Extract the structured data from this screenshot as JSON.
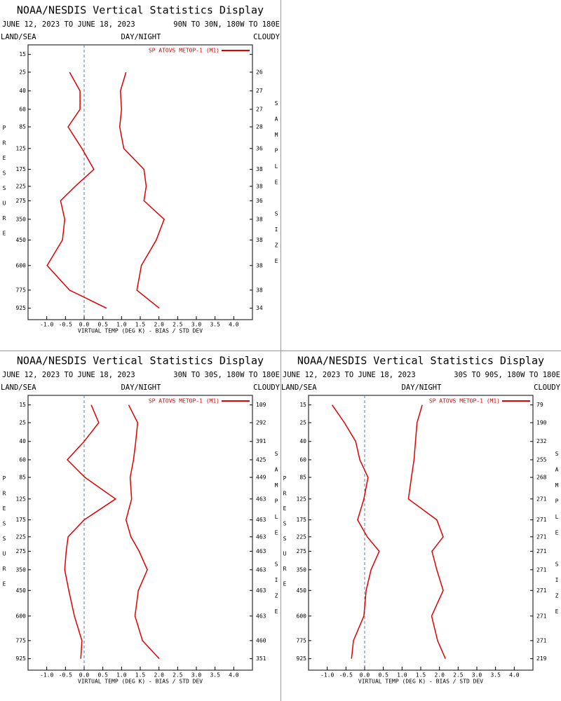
{
  "chart_data": [
    {
      "type": "line",
      "title": "NOAA/NESDIS Vertical Statistics Display",
      "subtitle": "JUNE 12, 2023 TO JUNE 18, 2023",
      "region": "90N TO 30N, 180W TO 180E",
      "land_sea": "LAND/SEA",
      "day_night": "DAY/NIGHT",
      "cloudy": "CLOUDY",
      "ylabel": "PRESSURE",
      "y2label": "SAMPLE SIZE",
      "xlabel": "VIRTUAL TEMP (DEG K) - BIAS / STD DEV",
      "yscale": "pressure",
      "ylim": [
        11,
        1030
      ],
      "xlim": [
        -1.5,
        4.5
      ],
      "y": [
        15,
        25,
        40,
        60,
        85,
        125,
        175,
        225,
        275,
        350,
        450,
        600,
        775,
        925
      ],
      "xticks": [
        {
          "value": -1,
          "label": "-1.0"
        },
        {
          "value": -0.5,
          "label": "-0.5"
        },
        {
          "value": 0,
          "label": "0.0"
        },
        0.5,
        {
          "value": 1,
          "label": "1.0"
        },
        1.5,
        {
          "value": 2,
          "label": "2.0"
        },
        2.5,
        {
          "value": 3,
          "label": "3.0"
        },
        3.5,
        {
          "value": 4,
          "label": "4.0"
        }
      ],
      "series": [
        {
          "name": "SP ATOVS METOP-1 (M1)",
          "color": "#e00000",
          "values": [
            null,
            -0.39,
            -0.11,
            -0.11,
            -0.43,
            -0.06,
            0.26,
            -0.24,
            -0.63,
            -0.52,
            -0.58,
            -0.99,
            -0.39,
            0.6
          ],
          "std_dev": [
            null,
            1.12,
            0.97,
            1.0,
            0.95,
            1.06,
            1.6,
            1.66,
            1.6,
            2.14,
            1.93,
            1.53,
            1.41,
            2.01
          ]
        }
      ],
      "sample_size": [
        null,
        26,
        27,
        27,
        28,
        36,
        38,
        38,
        36,
        38,
        38,
        38,
        38,
        34
      ]
    },
    {
      "type": "line",
      "title": "NOAA/NESDIS Vertical Statistics Display",
      "subtitle": "JUNE 12, 2023 TO JUNE 18, 2023",
      "region": "30N TO 30S, 180W TO 180E",
      "land_sea": "LAND/SEA",
      "day_night": "DAY/NIGHT",
      "cloudy": "CLOUDY",
      "ylabel": "PRESSURE",
      "y2label": "SAMPLE SIZE",
      "xlabel": "VIRTUAL TEMP (DEG K) - BIAS / STD DEV",
      "yscale": "pressure",
      "ylim": [
        11,
        1030
      ],
      "xlim": [
        -1.5,
        4.5
      ],
      "y": [
        15,
        25,
        40,
        60,
        85,
        125,
        175,
        225,
        275,
        350,
        450,
        600,
        775,
        925
      ],
      "xticks": [
        {
          "value": -1,
          "label": "-1.0"
        },
        {
          "value": -0.5,
          "label": "-0.5"
        },
        {
          "value": 0,
          "label": "0.0"
        },
        0.5,
        {
          "value": 1,
          "label": "1.0"
        },
        1.5,
        {
          "value": 2,
          "label": "2.0"
        },
        2.5,
        {
          "value": 3,
          "label": "3.0"
        },
        3.5,
        {
          "value": 4,
          "label": "4.0"
        }
      ],
      "series": [
        {
          "name": "SP ATOVS METOP-1 (M1)",
          "color": "#e00000",
          "values": [
            0.19,
            0.39,
            0.0,
            -0.45,
            0.02,
            0.84,
            0.0,
            -0.43,
            -0.48,
            -0.52,
            -0.41,
            -0.26,
            -0.06,
            -0.09
          ],
          "std_dev": [
            1.19,
            1.43,
            1.38,
            1.32,
            1.23,
            1.27,
            1.12,
            1.25,
            1.47,
            1.69,
            1.45,
            1.36,
            1.56,
            2.01
          ]
        }
      ],
      "sample_size": [
        109,
        292,
        391,
        425,
        449,
        463,
        463,
        463,
        463,
        463,
        463,
        463,
        460,
        351
      ]
    },
    {
      "type": "line",
      "title": "NOAA/NESDIS Vertical Statistics Display",
      "subtitle": "JUNE 12, 2023 TO JUNE 18, 2023",
      "region": "30S TO 90S, 180W TO 180E",
      "land_sea": "LAND/SEA",
      "day_night": "DAY/NIGHT",
      "cloudy": "CLOUDY",
      "ylabel": "PRESSURE",
      "y2label": "SAMPLE SIZE",
      "xlabel": "VIRTUAL TEMP (DEG K) - BIAS / STD DEV",
      "yscale": "pressure",
      "ylim": [
        11,
        1030
      ],
      "xlim": [
        -1.5,
        4.5
      ],
      "y": [
        15,
        25,
        40,
        60,
        85,
        125,
        175,
        225,
        275,
        350,
        450,
        600,
        775,
        925
      ],
      "xticks": [
        {
          "value": -1,
          "label": "-1.0"
        },
        {
          "value": -0.5,
          "label": "-0.5"
        },
        {
          "value": 0,
          "label": "0.0"
        },
        0.5,
        {
          "value": 1,
          "label": "1.0"
        },
        1.5,
        {
          "value": 2,
          "label": "2.0"
        },
        2.5,
        {
          "value": 3,
          "label": "3.0"
        },
        3.5,
        {
          "value": 4,
          "label": "4.0"
        }
      ],
      "series": [
        {
          "name": "SP ATOVS METOP-1 (M1)",
          "color": "#e00000",
          "values": [
            -0.87,
            -0.54,
            -0.24,
            -0.13,
            0.09,
            -0.02,
            -0.19,
            0.07,
            0.39,
            0.17,
            0.04,
            -0.02,
            -0.3,
            -0.35
          ],
          "std_dev": [
            1.54,
            1.4,
            1.36,
            1.32,
            1.25,
            1.17,
            1.93,
            2.1,
            1.8,
            1.93,
            2.1,
            1.79,
            1.95,
            2.16
          ]
        }
      ],
      "sample_size": [
        79,
        190,
        232,
        255,
        268,
        271,
        271,
        271,
        271,
        271,
        271,
        271,
        271,
        219
      ]
    }
  ]
}
